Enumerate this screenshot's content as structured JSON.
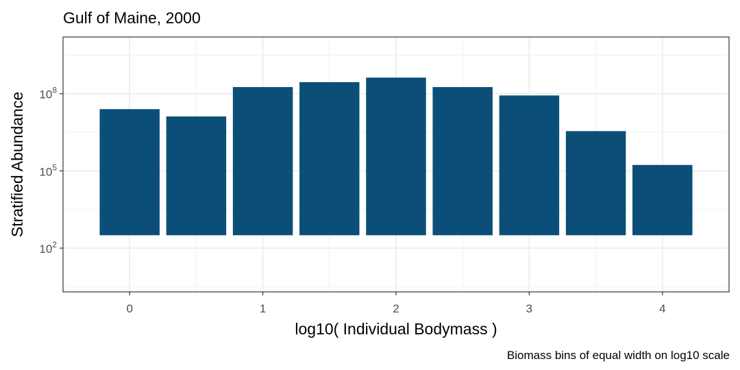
{
  "chart_data": {
    "type": "bar",
    "title": "Gulf of Maine, 2000",
    "xlabel": "log10( Individual Bodymass )",
    "ylabel": "Stratified Abundance",
    "caption": "Biomass bins of equal width on log10 scale",
    "y_scale": "log10",
    "x": [
      0,
      0.5,
      1,
      1.5,
      2,
      2.5,
      3,
      3.5,
      4
    ],
    "values": [
      25000000,
      13000000,
      180000000,
      280000000,
      420000000,
      180000000,
      85000000,
      3500000,
      170000
    ],
    "bar_color": "#0b4f78",
    "bar_baseline": 2.5,
    "xlim": [
      -0.5,
      4.5
    ],
    "ylim_log10": [
      0.3,
      10.2
    ],
    "x_ticks": [
      {
        "value": 0,
        "label": "0"
      },
      {
        "value": 1,
        "label": "1"
      },
      {
        "value": 2,
        "label": "2"
      },
      {
        "value": 3,
        "label": "3"
      },
      {
        "value": 4,
        "label": "4"
      }
    ],
    "y_ticks": [
      {
        "exp": 2,
        "base": "10",
        "sup": "2"
      },
      {
        "exp": 5,
        "base": "10",
        "sup": "5"
      },
      {
        "exp": 8,
        "base": "10",
        "sup": "8"
      }
    ],
    "grid": true
  }
}
